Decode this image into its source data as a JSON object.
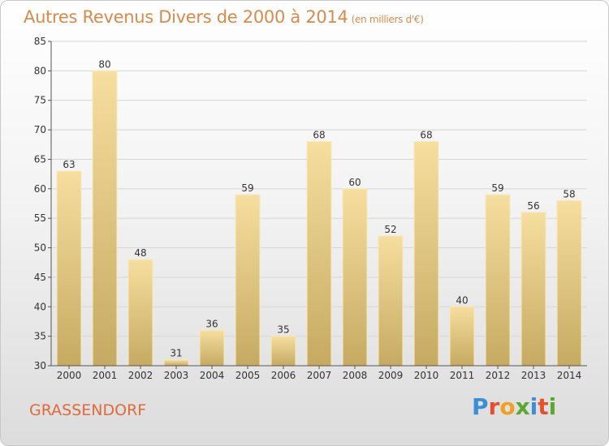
{
  "header": {
    "title": "Autres Revenus Divers de 2000 à 2014",
    "unit": "(en milliers d'€)"
  },
  "footer": {
    "place": "GRASSENDORF",
    "brand": "Proxiti"
  },
  "colors": {
    "title": "#d98a4a",
    "place": "#e06a3a",
    "bar_light": "#f5dc9c",
    "bar_dark": "#c4a860"
  },
  "chart_data": {
    "type": "bar",
    "categories": [
      "2000",
      "2001",
      "2002",
      "2003",
      "2004",
      "2005",
      "2006",
      "2007",
      "2008",
      "2009",
      "2010",
      "2011",
      "2012",
      "2013",
      "2014"
    ],
    "values": [
      63,
      80,
      48,
      31,
      36,
      59,
      35,
      68,
      60,
      52,
      68,
      40,
      59,
      56,
      58
    ],
    "title": "Autres Revenus Divers de 2000 à 2014",
    "subtitle": "(en milliers d'€)",
    "xlabel": "",
    "ylabel": "",
    "ylim": [
      30,
      85
    ],
    "yticks": [
      30,
      35,
      40,
      45,
      50,
      55,
      60,
      65,
      70,
      75,
      80,
      85
    ],
    "grid": true,
    "data_labels": true
  }
}
